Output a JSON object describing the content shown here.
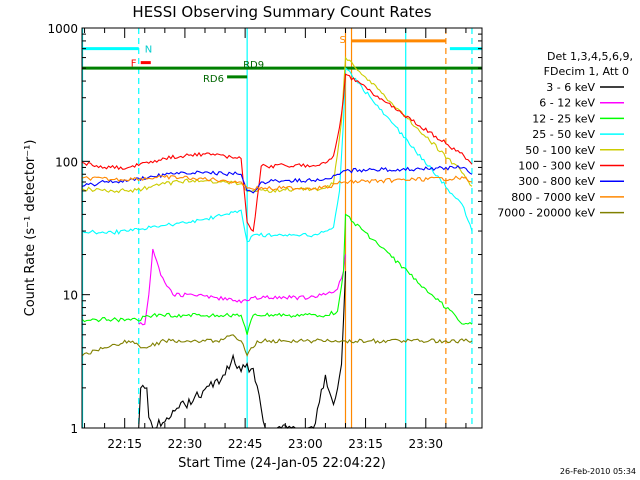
{
  "chart_data": {
    "type": "line",
    "title": "HESSI Observing Summary Count Rates",
    "xlabel": "Start Time (24-Jan-05 22:04:22)",
    "ylabel": "Count Rate (s⁻¹ detector⁻¹)",
    "y_scale": "log",
    "ylim": [
      1,
      1000
    ],
    "xlim": [
      "22:04:22",
      "23:44:00"
    ],
    "x_ticks": [
      "22:15",
      "22:30",
      "22:45",
      "23:00",
      "23:15",
      "23:30"
    ],
    "y_ticks": [
      "1",
      "10",
      "100",
      "1000"
    ],
    "legend_position": "right",
    "legend_header": [
      "Det 1,3,4,5,6,9,",
      "FDecim 1, Att 0"
    ],
    "series": [
      {
        "name": "3 - 6 keV",
        "color": "#000000",
        "points": [
          [
            "22:18:30",
            1
          ],
          [
            "22:19:00",
            2
          ],
          [
            "22:20:30",
            2
          ],
          [
            "22:21:00",
            1.2
          ],
          [
            "22:22:00",
            1
          ],
          [
            "22:40:00",
            2.5
          ],
          [
            "22:42:00",
            3.5
          ],
          [
            "22:43:00",
            2.8
          ],
          [
            "22:47:00",
            2.8
          ],
          [
            "22:50:00",
            1
          ],
          [
            "23:02:00",
            1
          ],
          [
            "23:05:00",
            2.5
          ],
          [
            "23:07:00",
            1.5
          ],
          [
            "23:09:00",
            3
          ],
          [
            "23:10:00",
            15
          ]
        ]
      },
      {
        "name": "6 - 12 keV",
        "color": "#ff00ff",
        "points": [
          [
            "22:18:30",
            6
          ],
          [
            "22:20:00",
            6
          ],
          [
            "22:21:00",
            10
          ],
          [
            "22:22:00",
            22
          ],
          [
            "22:24:00",
            14
          ],
          [
            "22:27:00",
            10
          ],
          [
            "22:32:00",
            10
          ],
          [
            "22:38:00",
            9.5
          ],
          [
            "22:42:00",
            9
          ],
          [
            "22:45:30",
            9
          ],
          [
            "22:47:00",
            9.5
          ],
          [
            "22:55:00",
            9.5
          ],
          [
            "23:01:00",
            9.5
          ],
          [
            "23:05:00",
            10
          ],
          [
            "23:08:00",
            11
          ],
          [
            "23:09:30",
            15
          ],
          [
            "23:10:00",
            20
          ]
        ]
      },
      {
        "name": "12 - 25 keV",
        "color": "#00ff00",
        "points": [
          [
            "22:04:30",
            6.5
          ],
          [
            "22:12:00",
            6.5
          ],
          [
            "22:18:00",
            6.5
          ],
          [
            "22:22:00",
            7
          ],
          [
            "22:30:00",
            7
          ],
          [
            "22:40:00",
            7
          ],
          [
            "22:44:00",
            7
          ],
          [
            "22:45:30",
            5
          ],
          [
            "22:47:00",
            7
          ],
          [
            "22:55:00",
            7
          ],
          [
            "23:05:00",
            7
          ],
          [
            "23:08:00",
            7.5
          ],
          [
            "23:09:30",
            15
          ],
          [
            "23:10:00",
            40
          ],
          [
            "23:39:30",
            6
          ],
          [
            "23:41:30",
            6
          ]
        ]
      },
      {
        "name": "25 - 50 keV",
        "color": "#00ffff",
        "points": [
          [
            "22:04:30",
            30
          ],
          [
            "22:10:00",
            29
          ],
          [
            "22:16:00",
            30
          ],
          [
            "22:19:00",
            31
          ],
          [
            "22:25:00",
            33
          ],
          [
            "22:35:00",
            37
          ],
          [
            "22:40:00",
            40
          ],
          [
            "22:44:00",
            43
          ],
          [
            "22:45:30",
            25
          ],
          [
            "22:47:00",
            28
          ],
          [
            "22:55:00",
            28
          ],
          [
            "23:02:00",
            28
          ],
          [
            "23:05:00",
            30
          ],
          [
            "23:07:00",
            32
          ],
          [
            "23:08:30",
            60
          ],
          [
            "23:09:30",
            200
          ],
          [
            "23:10:00",
            500
          ],
          [
            "23:39:30",
            45
          ],
          [
            "23:41:30",
            30
          ]
        ]
      },
      {
        "name": "50 - 100 keV",
        "color": "#cccc00",
        "points": [
          [
            "22:04:30",
            62
          ],
          [
            "22:12:00",
            60
          ],
          [
            "22:18:00",
            61
          ],
          [
            "22:25:00",
            68
          ],
          [
            "22:32:00",
            72
          ],
          [
            "22:40:00",
            70
          ],
          [
            "22:44:00",
            68
          ],
          [
            "22:45:30",
            60
          ],
          [
            "22:50:00",
            60
          ],
          [
            "22:55:00",
            61
          ],
          [
            "23:02:00",
            62
          ],
          [
            "23:05:00",
            63
          ],
          [
            "23:07:00",
            68
          ],
          [
            "23:09:00",
            200
          ],
          [
            "23:10:00",
            600
          ],
          [
            "23:39:30",
            80
          ],
          [
            "23:41:30",
            65
          ]
        ]
      },
      {
        "name": "100 - 300 keV",
        "color": "#ff0000",
        "points": [
          [
            "22:04:30",
            98
          ],
          [
            "22:10:00",
            90
          ],
          [
            "22:16:00",
            90
          ],
          [
            "22:20:00",
            98
          ],
          [
            "22:25:00",
            105
          ],
          [
            "22:30:00",
            110
          ],
          [
            "22:36:00",
            115
          ],
          [
            "22:44:00",
            105
          ],
          [
            "22:45:30",
            35
          ],
          [
            "22:47:00",
            30
          ],
          [
            "22:49:00",
            92
          ],
          [
            "22:55:00",
            93
          ],
          [
            "23:02:00",
            93
          ],
          [
            "23:05:00",
            97
          ],
          [
            "23:07:00",
            110
          ],
          [
            "23:08:30",
            180
          ],
          [
            "23:09:30",
            300
          ],
          [
            "23:10:00",
            450
          ],
          [
            "23:39:30",
            110
          ],
          [
            "23:41:30",
            95
          ]
        ]
      },
      {
        "name": "300 - 800 keV",
        "color": "#0000ff",
        "points": [
          [
            "22:04:30",
            65
          ],
          [
            "22:10:00",
            70
          ],
          [
            "22:16:00",
            72
          ],
          [
            "22:22:00",
            77
          ],
          [
            "22:30:00",
            82
          ],
          [
            "22:36:00",
            82
          ],
          [
            "22:44:00",
            80
          ],
          [
            "22:45:30",
            60
          ],
          [
            "22:47:00",
            58
          ],
          [
            "22:49:00",
            70
          ],
          [
            "22:55:00",
            72
          ],
          [
            "23:02:00",
            72
          ],
          [
            "23:06:00",
            74
          ],
          [
            "23:08:00",
            80
          ],
          [
            "23:09:30",
            85
          ],
          [
            "23:10:00",
            85
          ],
          [
            "23:39:30",
            90
          ],
          [
            "23:41:30",
            80
          ]
        ]
      },
      {
        "name": "800 - 7000 keV",
        "color": "#ff8800",
        "points": [
          [
            "22:04:30",
            75
          ],
          [
            "22:12:00",
            73
          ],
          [
            "22:18:00",
            74
          ],
          [
            "22:25:00",
            76
          ],
          [
            "22:32:00",
            75
          ],
          [
            "22:40:00",
            72
          ],
          [
            "22:44:00",
            70
          ],
          [
            "22:45:30",
            63
          ],
          [
            "22:50:00",
            63
          ],
          [
            "22:55:00",
            63
          ],
          [
            "23:02:00",
            63
          ],
          [
            "23:06:00",
            64
          ],
          [
            "23:08:00",
            68
          ],
          [
            "23:09:30",
            70
          ],
          [
            "23:10:00",
            70
          ],
          [
            "23:39:30",
            75
          ],
          [
            "23:41:30",
            70
          ]
        ]
      },
      {
        "name": "7000 - 20000 keV",
        "color": "#808000",
        "points": [
          [
            "22:04:30",
            3.5
          ],
          [
            "22:10:00",
            4
          ],
          [
            "22:16:00",
            4.5
          ],
          [
            "22:20:00",
            4
          ],
          [
            "22:25:00",
            4.5
          ],
          [
            "22:32:00",
            4.5
          ],
          [
            "22:38:00",
            4.5
          ],
          [
            "22:42:00",
            5
          ],
          [
            "22:44:00",
            4.5
          ],
          [
            "22:45:30",
            3.5
          ],
          [
            "22:48:00",
            4.5
          ],
          [
            "22:55:00",
            4.5
          ],
          [
            "23:02:00",
            4.5
          ],
          [
            "23:06:00",
            4.5
          ],
          [
            "23:09:00",
            4.5
          ],
          [
            "23:10:00",
            4.5
          ],
          [
            "23:39:30",
            4.5
          ],
          [
            "23:41:30",
            4.5
          ]
        ]
      }
    ],
    "annotations": {
      "text_labels": [
        {
          "text": "N",
          "color": "#00cccc"
        },
        {
          "text": "F",
          "color": "#ff0000"
        },
        {
          "text": "RD6",
          "color": "#006600"
        },
        {
          "text": "RD9",
          "color": "#006600"
        },
        {
          "text": "S",
          "color": "#ff8800"
        }
      ],
      "state_bars": [
        {
          "label": "N",
          "color": "#00ffff",
          "level": 700,
          "from": "22:04:22",
          "to": "22:18:30"
        },
        {
          "label": "N",
          "color": "#00ffff",
          "level": 700,
          "from": "23:36:00",
          "to": "23:44:00"
        },
        {
          "label": "F",
          "color": "#ff0000",
          "level": 550,
          "from": "22:19:00",
          "to": "22:21:30"
        },
        {
          "label": "RD9",
          "color": "#008000",
          "level": 500,
          "from": "22:04:22",
          "to": "23:44:00"
        },
        {
          "label": "RD6",
          "color": "#008000",
          "level": 430,
          "from": "22:40:30",
          "to": "22:45:30"
        },
        {
          "label": "S",
          "color": "#ff8800",
          "level": 800,
          "from": "23:11:30",
          "to": "23:35:00"
        }
      ],
      "vertical_lines": [
        {
          "time": "22:04:30",
          "color": "#00ffff",
          "style": "solid"
        },
        {
          "time": "22:18:30",
          "color": "#00ffff",
          "style": "dashed"
        },
        {
          "time": "22:45:30",
          "color": "#00ffff",
          "style": "solid"
        },
        {
          "time": "23:10:00",
          "color": "#ff8800",
          "style": "solid"
        },
        {
          "time": "23:11:30",
          "color": "#ff8800",
          "style": "solid"
        },
        {
          "time": "23:25:00",
          "color": "#00ffff",
          "style": "solid"
        },
        {
          "time": "23:35:00",
          "color": "#ff8800",
          "style": "dashed"
        },
        {
          "time": "23:41:30",
          "color": "#00ffff",
          "style": "dashed"
        }
      ]
    },
    "footer_timestamp": "26-Feb-2010 05:34"
  }
}
